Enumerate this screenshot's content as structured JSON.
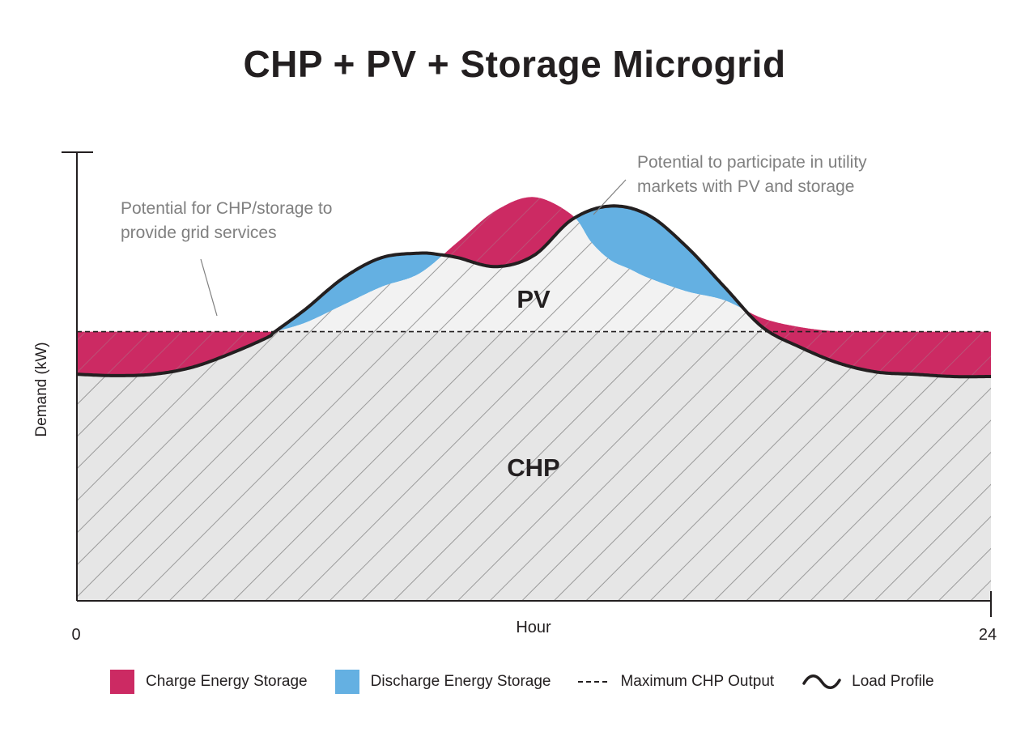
{
  "chart_data": {
    "type": "area",
    "title": "CHP + PV + Storage Microgrid",
    "xlabel": "Hour",
    "ylabel": "Demand (kW)",
    "x_ticks": [
      "0",
      "24"
    ],
    "xlim": [
      0,
      24
    ],
    "ylim": [
      0,
      100
    ],
    "max_chp_output": 60,
    "load_profile": {
      "x": [
        0,
        1,
        2,
        3,
        4,
        5,
        5.2,
        6,
        7,
        8,
        9,
        9.5,
        10,
        11,
        12,
        13,
        14,
        15,
        16,
        17,
        18,
        19,
        20,
        21,
        22,
        23,
        24
      ],
      "y": [
        50.5,
        50.2,
        50.5,
        52,
        55,
        58.7,
        60,
        65,
        72,
        76.5,
        77.5,
        77.2,
        76.5,
        74.5,
        77,
        85,
        88,
        86,
        79,
        70,
        61,
        56.5,
        53,
        51,
        50.5,
        50,
        50
      ]
    },
    "pv_generation": {
      "x": [
        5.2,
        6,
        7,
        8,
        9,
        10,
        11,
        12,
        13,
        13.5,
        14,
        14.5,
        15,
        16,
        17,
        18,
        19,
        20,
        20.5
      ],
      "y": [
        60,
        62,
        66,
        70,
        73,
        80,
        87,
        90,
        86,
        80,
        76,
        74,
        72,
        69,
        67,
        63,
        61,
        60,
        60
      ]
    },
    "annotations": [
      "Potential for CHP/storage to provide grid services",
      "Potential to participate in utility markets with PV and storage"
    ],
    "region_labels": [
      "PV",
      "CHP"
    ],
    "legend": [
      {
        "label": "Charge Energy Storage",
        "color": "#cc2a63"
      },
      {
        "label": "Discharge Energy Storage",
        "color": "#64b0e2"
      },
      {
        "label": "Maximum CHP Output"
      },
      {
        "label": "Load Profile"
      }
    ]
  },
  "annotations": {
    "left_line1": "Potential for CHP/storage to",
    "left_line2": "provide grid services",
    "right_line1": "Potential to participate in utility",
    "right_line2": "markets with PV and storage"
  },
  "colors": {
    "charge": "#cc2a63",
    "discharge": "#64b0e2",
    "chp_fill": "#e6e6e6",
    "pv_fill": "#f2f2f2",
    "hatch": "#9a9a9a",
    "annotation_text": "#808080",
    "ink": "#231f20"
  }
}
